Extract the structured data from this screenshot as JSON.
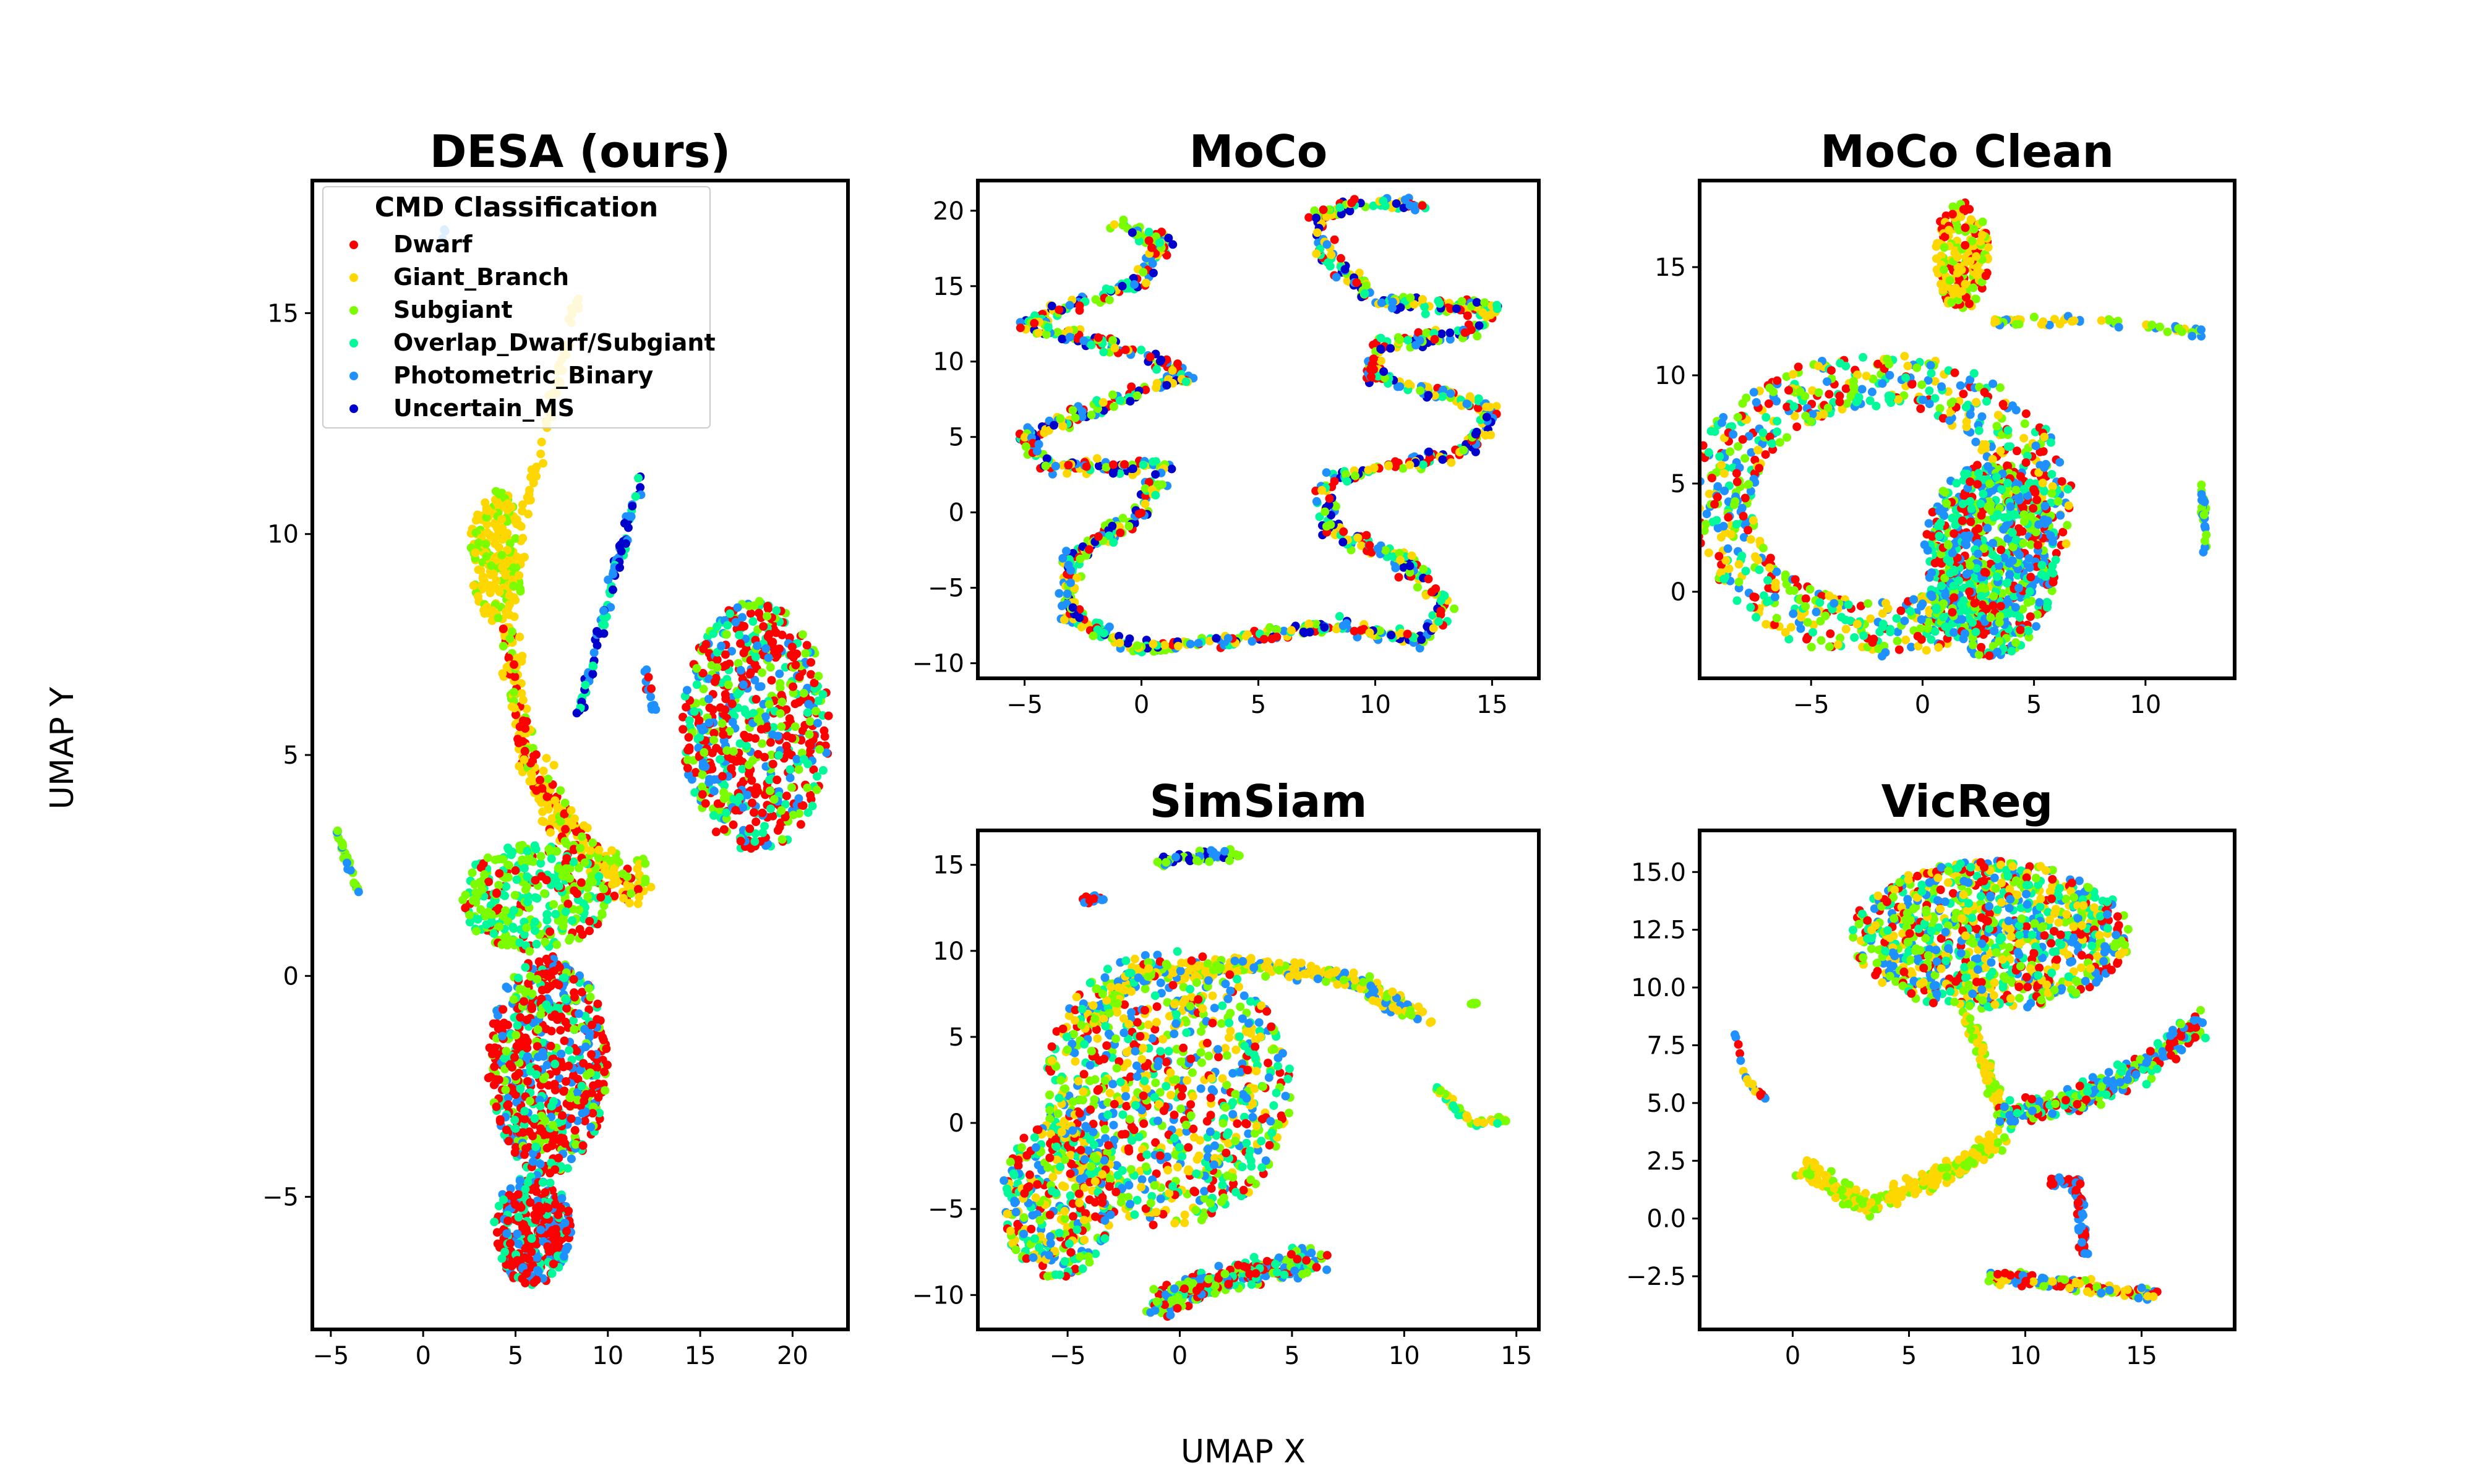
{
  "figure": {
    "xlabel": "UMAP X",
    "ylabel": "UMAP Y"
  },
  "legend": {
    "title": "CMD Classification",
    "entries": [
      {
        "label": "Dwarf",
        "color": "#ff0000"
      },
      {
        "label": "Giant_Branch",
        "color": "#ffd700"
      },
      {
        "label": "Subgiant",
        "color": "#7cfc00"
      },
      {
        "label": "Overlap_Dwarf/Subgiant",
        "color": "#00fa9a"
      },
      {
        "label": "Photometric_Binary",
        "color": "#1e90ff"
      },
      {
        "label": "Uncertain_MS",
        "color": "#0000cd"
      }
    ]
  },
  "chart_data": [
    {
      "type": "scatter",
      "title": "DESA (ours)",
      "xlim": [
        -6,
        23
      ],
      "ylim": [
        -8,
        18
      ],
      "xticks": [
        -5,
        0,
        5,
        10,
        15,
        20
      ],
      "yticks": [
        -5,
        0,
        5,
        10,
        15
      ],
      "clusters": [
        {
          "kind": "blob",
          "xr": [
            2.5,
            5.5
          ],
          "yr": [
            8,
            11
          ],
          "colors": [
            "#ffd700",
            "#ffd700",
            "#ffd700",
            "#7cfc00"
          ],
          "n": 220
        },
        {
          "kind": "stroke",
          "path": [
            [
              5.5,
              10.5
            ],
            [
              7,
              13
            ],
            [
              8.5,
              15.5
            ]
          ],
          "width": 0.3,
          "colors": [
            "#ffd700"
          ],
          "n": 60
        },
        {
          "kind": "stroke",
          "path": [
            [
              4.5,
              8
            ],
            [
              5.5,
              5
            ],
            [
              7.5,
              3.5
            ],
            [
              10,
              2.2
            ],
            [
              12,
              2
            ]
          ],
          "width": 0.8,
          "colors": [
            "#ffd700",
            "#ffd700",
            "#7cfc00",
            "#ff0000"
          ],
          "n": 300
        },
        {
          "kind": "blob",
          "xr": [
            2,
            10
          ],
          "yr": [
            0.5,
            3
          ],
          "colors": [
            "#7cfc00",
            "#00fa9a",
            "#00fa9a",
            "#7cfc00",
            "#ff0000"
          ],
          "n": 320
        },
        {
          "kind": "blob",
          "xr": [
            3.5,
            10
          ],
          "yr": [
            -4.5,
            0.5
          ],
          "colors": [
            "#ff0000",
            "#ff0000",
            "#00fa9a",
            "#1e90ff",
            "#7cfc00"
          ],
          "n": 650
        },
        {
          "kind": "blob",
          "xr": [
            3.8,
            8
          ],
          "yr": [
            -7,
            -4.5
          ],
          "colors": [
            "#ff0000",
            "#ff0000",
            "#1e90ff",
            "#00fa9a"
          ],
          "n": 350
        },
        {
          "kind": "blob",
          "xr": [
            14,
            22
          ],
          "yr": [
            2.8,
            8.5
          ],
          "colors": [
            "#ff0000",
            "#ff0000",
            "#7cfc00",
            "#00fa9a",
            "#1e90ff"
          ],
          "n": 650
        },
        {
          "kind": "stroke",
          "path": [
            [
              8.5,
              6
            ],
            [
              10,
              8.5
            ],
            [
              11.8,
              11.3
            ]
          ],
          "width": 0.3,
          "colors": [
            "#1e90ff",
            "#00fa9a",
            "#0000cd"
          ],
          "n": 90
        },
        {
          "kind": "stroke",
          "path": [
            [
              12,
              7
            ],
            [
              12.5,
              6
            ]
          ],
          "width": 0.2,
          "colors": [
            "#ff0000",
            "#1e90ff"
          ],
          "n": 14
        },
        {
          "kind": "stroke",
          "path": [
            [
              -4.8,
              3.4
            ],
            [
              -3.5,
              1.9
            ]
          ],
          "width": 0.15,
          "colors": [
            "#1e90ff",
            "#7cfc00"
          ],
          "n": 30
        },
        {
          "kind": "stroke",
          "path": [
            [
              1,
              16.5
            ],
            [
              1.2,
              17
            ]
          ],
          "width": 0.1,
          "colors": [
            "#1e90ff"
          ],
          "n": 6
        }
      ]
    },
    {
      "type": "scatter",
      "title": "MoCo",
      "xlim": [
        -7,
        17
      ],
      "ylim": [
        -11,
        22
      ],
      "xticks": [
        -5,
        0,
        5,
        10,
        15
      ],
      "yticks": [
        -10,
        -5,
        0,
        5,
        10,
        15,
        20
      ],
      "clusters": [
        {
          "kind": "stroke",
          "path": [
            [
              -1,
              19
            ],
            [
              1,
              18
            ],
            [
              0,
              15.5
            ],
            [
              -5,
              12.5
            ],
            [
              0,
              10.5
            ],
            [
              2,
              9
            ],
            [
              -2,
              7
            ],
            [
              -5,
              5
            ],
            [
              -4,
              3
            ],
            [
              1,
              3
            ],
            [
              0,
              0
            ],
            [
              -3,
              -3
            ],
            [
              -3,
              -7
            ],
            [
              0,
              -9
            ],
            [
              4,
              -8.5
            ],
            [
              8,
              -7.5
            ],
            [
              12,
              -8.5
            ],
            [
              13,
              -6
            ],
            [
              11,
              -3
            ],
            [
              8,
              -1
            ],
            [
              8,
              2
            ],
            [
              10,
              3
            ],
            [
              14,
              4
            ],
            [
              15,
              7
            ],
            [
              10,
              9
            ],
            [
              10,
              11
            ],
            [
              14,
              12
            ],
            [
              15,
              13.5
            ],
            [
              10,
              14
            ],
            [
              8,
              17
            ],
            [
              7.5,
              19.5
            ],
            [
              9,
              20.5
            ],
            [
              12,
              20.5
            ]
          ],
          "width": 0.7,
          "colors": [
            "#ff0000",
            "#ffd700",
            "#7cfc00",
            "#00fa9a",
            "#1e90ff",
            "#0000cd"
          ],
          "n": 1400
        }
      ]
    },
    {
      "type": "scatter",
      "title": "MoCo Clean",
      "xlim": [
        -10,
        14
      ],
      "ylim": [
        -4,
        19
      ],
      "xticks": [
        -5,
        0,
        5,
        10
      ],
      "yticks": [
        0,
        5,
        10,
        15
      ],
      "clusters": [
        {
          "kind": "ring",
          "center": [
            -2,
            4
          ],
          "r": [
            4.5,
            7
          ],
          "rx": 1.25,
          "colors": [
            "#ff0000",
            "#7cfc00",
            "#00fa9a",
            "#1e90ff",
            "#ffd700"
          ],
          "n": 900
        },
        {
          "kind": "blob",
          "xr": [
            0,
            6
          ],
          "yr": [
            -3,
            6
          ],
          "colors": [
            "#1e90ff",
            "#00fa9a",
            "#7cfc00",
            "#ff0000"
          ],
          "n": 700
        },
        {
          "kind": "blob",
          "xr": [
            0.5,
            3
          ],
          "yr": [
            13,
            18
          ],
          "colors": [
            "#ffd700",
            "#ffd700",
            "#ff0000",
            "#7cfc00"
          ],
          "n": 200
        },
        {
          "kind": "stroke",
          "path": [
            [
              3,
              12.5
            ],
            [
              8,
              12.5
            ],
            [
              12.5,
              12
            ]
          ],
          "width": 0.3,
          "colors": [
            "#ffd700",
            "#7cfc00",
            "#1e90ff"
          ],
          "n": 60
        },
        {
          "kind": "stroke",
          "path": [
            [
              12.5,
              5
            ],
            [
              12.7,
              1.8
            ]
          ],
          "width": 0.2,
          "colors": [
            "#7cfc00",
            "#1e90ff"
          ],
          "n": 25
        }
      ]
    },
    {
      "type": "scatter",
      "title": "SimSiam",
      "xlim": [
        -9,
        16
      ],
      "ylim": [
        -12,
        17
      ],
      "xticks": [
        -5,
        0,
        5,
        10,
        15
      ],
      "yticks": [
        -10,
        -5,
        0,
        5,
        10,
        15
      ],
      "clusters": [
        {
          "kind": "stroke",
          "path": [
            [
              -1,
              15.2
            ],
            [
              2.5,
              15.7
            ]
          ],
          "width": 0.5,
          "colors": [
            "#1e90ff",
            "#0000cd",
            "#7cfc00"
          ],
          "n": 60
        },
        {
          "kind": "stroke",
          "path": [
            [
              -4.5,
              13
            ],
            [
              -3.5,
              13
            ]
          ],
          "width": 0.4,
          "colors": [
            "#1e90ff",
            "#ff0000"
          ],
          "n": 20
        },
        {
          "kind": "stroke",
          "path": [
            [
              -4,
              6
            ],
            [
              -2,
              8.5
            ],
            [
              3,
              9.2
            ],
            [
              7.5,
              8.5
            ],
            [
              9.5,
              7
            ],
            [
              11,
              6
            ]
          ],
          "width": 0.8,
          "colors": [
            "#ffd700",
            "#ffd700",
            "#7cfc00",
            "#1e90ff"
          ],
          "n": 360
        },
        {
          "kind": "blob",
          "xr": [
            -6,
            5
          ],
          "yr": [
            -6,
            10
          ],
          "colors": [
            "#00fa9a",
            "#1e90ff",
            "#7cfc00",
            "#ff0000",
            "#ffd700"
          ],
          "n": 900
        },
        {
          "kind": "blob",
          "xr": [
            -8,
            -3
          ],
          "yr": [
            -9,
            0
          ],
          "colors": [
            "#ff0000",
            "#00fa9a",
            "#7cfc00",
            "#ffd700",
            "#1e90ff"
          ],
          "n": 350
        },
        {
          "kind": "stroke",
          "path": [
            [
              -1,
              -10.5
            ],
            [
              2,
              -9
            ],
            [
              6,
              -8
            ]
          ],
          "width": 1.1,
          "colors": [
            "#00fa9a",
            "#7cfc00",
            "#1e90ff",
            "#ff0000"
          ],
          "n": 300
        },
        {
          "kind": "stroke",
          "path": [
            [
              11.5,
              2
            ],
            [
              13,
              0
            ],
            [
              14.5,
              0.2
            ]
          ],
          "width": 0.3,
          "colors": [
            "#7cfc00",
            "#00fa9a",
            "#ffd700"
          ],
          "n": 45
        },
        {
          "kind": "stroke",
          "path": [
            [
              13,
              6.8
            ],
            [
              13.2,
              7
            ]
          ],
          "width": 0.2,
          "colors": [
            "#7cfc00"
          ],
          "n": 6
        }
      ]
    },
    {
      "type": "scatter",
      "title": "VicReg",
      "xlim": [
        -4,
        19
      ],
      "ylim": [
        -4.8,
        16.8
      ],
      "xticks": [
        0,
        5,
        10,
        15
      ],
      "yticks": [
        -2.5,
        0.0,
        2.5,
        5.0,
        7.5,
        10.0,
        12.5,
        15.0
      ],
      "clusters": [
        {
          "kind": "blob",
          "xr": [
            2.5,
            14.5
          ],
          "yr": [
            9,
            15.5
          ],
          "colors": [
            "#00fa9a",
            "#7cfc00",
            "#1e90ff",
            "#ff0000",
            "#ffd700"
          ],
          "n": 1000
        },
        {
          "kind": "stroke",
          "path": [
            [
              7.5,
              9
            ],
            [
              8.5,
              6
            ],
            [
              9,
              4.5
            ]
          ],
          "width": 0.4,
          "colors": [
            "#ffd700",
            "#7cfc00"
          ],
          "n": 90
        },
        {
          "kind": "stroke",
          "path": [
            [
              9,
              4.5
            ],
            [
              12,
              5
            ],
            [
              15,
              6.5
            ],
            [
              17.5,
              8.5
            ]
          ],
          "width": 0.8,
          "colors": [
            "#ff0000",
            "#7cfc00",
            "#00fa9a",
            "#1e90ff"
          ],
          "n": 320
        },
        {
          "kind": "stroke",
          "path": [
            [
              0.5,
              2.3
            ],
            [
              3,
              0.5
            ],
            [
              5.5,
              1.5
            ],
            [
              7.5,
              2.5
            ],
            [
              9,
              3.5
            ]
          ],
          "width": 0.6,
          "colors": [
            "#ffd700",
            "#ffd700",
            "#7cfc00"
          ],
          "n": 260
        },
        {
          "kind": "stroke",
          "path": [
            [
              11,
              1.5
            ],
            [
              12.2,
              1.7
            ],
            [
              12.5,
              -1.5
            ]
          ],
          "width": 0.3,
          "colors": [
            "#ff0000",
            "#1e90ff"
          ],
          "n": 70
        },
        {
          "kind": "stroke",
          "path": [
            [
              8.5,
              -2.5
            ],
            [
              11.5,
              -2.8
            ],
            [
              15.5,
              -3.3
            ]
          ],
          "width": 0.4,
          "colors": [
            "#ffd700",
            "#1e90ff",
            "#7cfc00",
            "#ff0000"
          ],
          "n": 140
        },
        {
          "kind": "stroke",
          "path": [
            [
              -2.5,
              8
            ],
            [
              -2,
              6
            ],
            [
              -1,
              5
            ]
          ],
          "width": 0.15,
          "colors": [
            "#ffd700",
            "#1e90ff",
            "#ff0000"
          ],
          "n": 20
        }
      ]
    }
  ]
}
